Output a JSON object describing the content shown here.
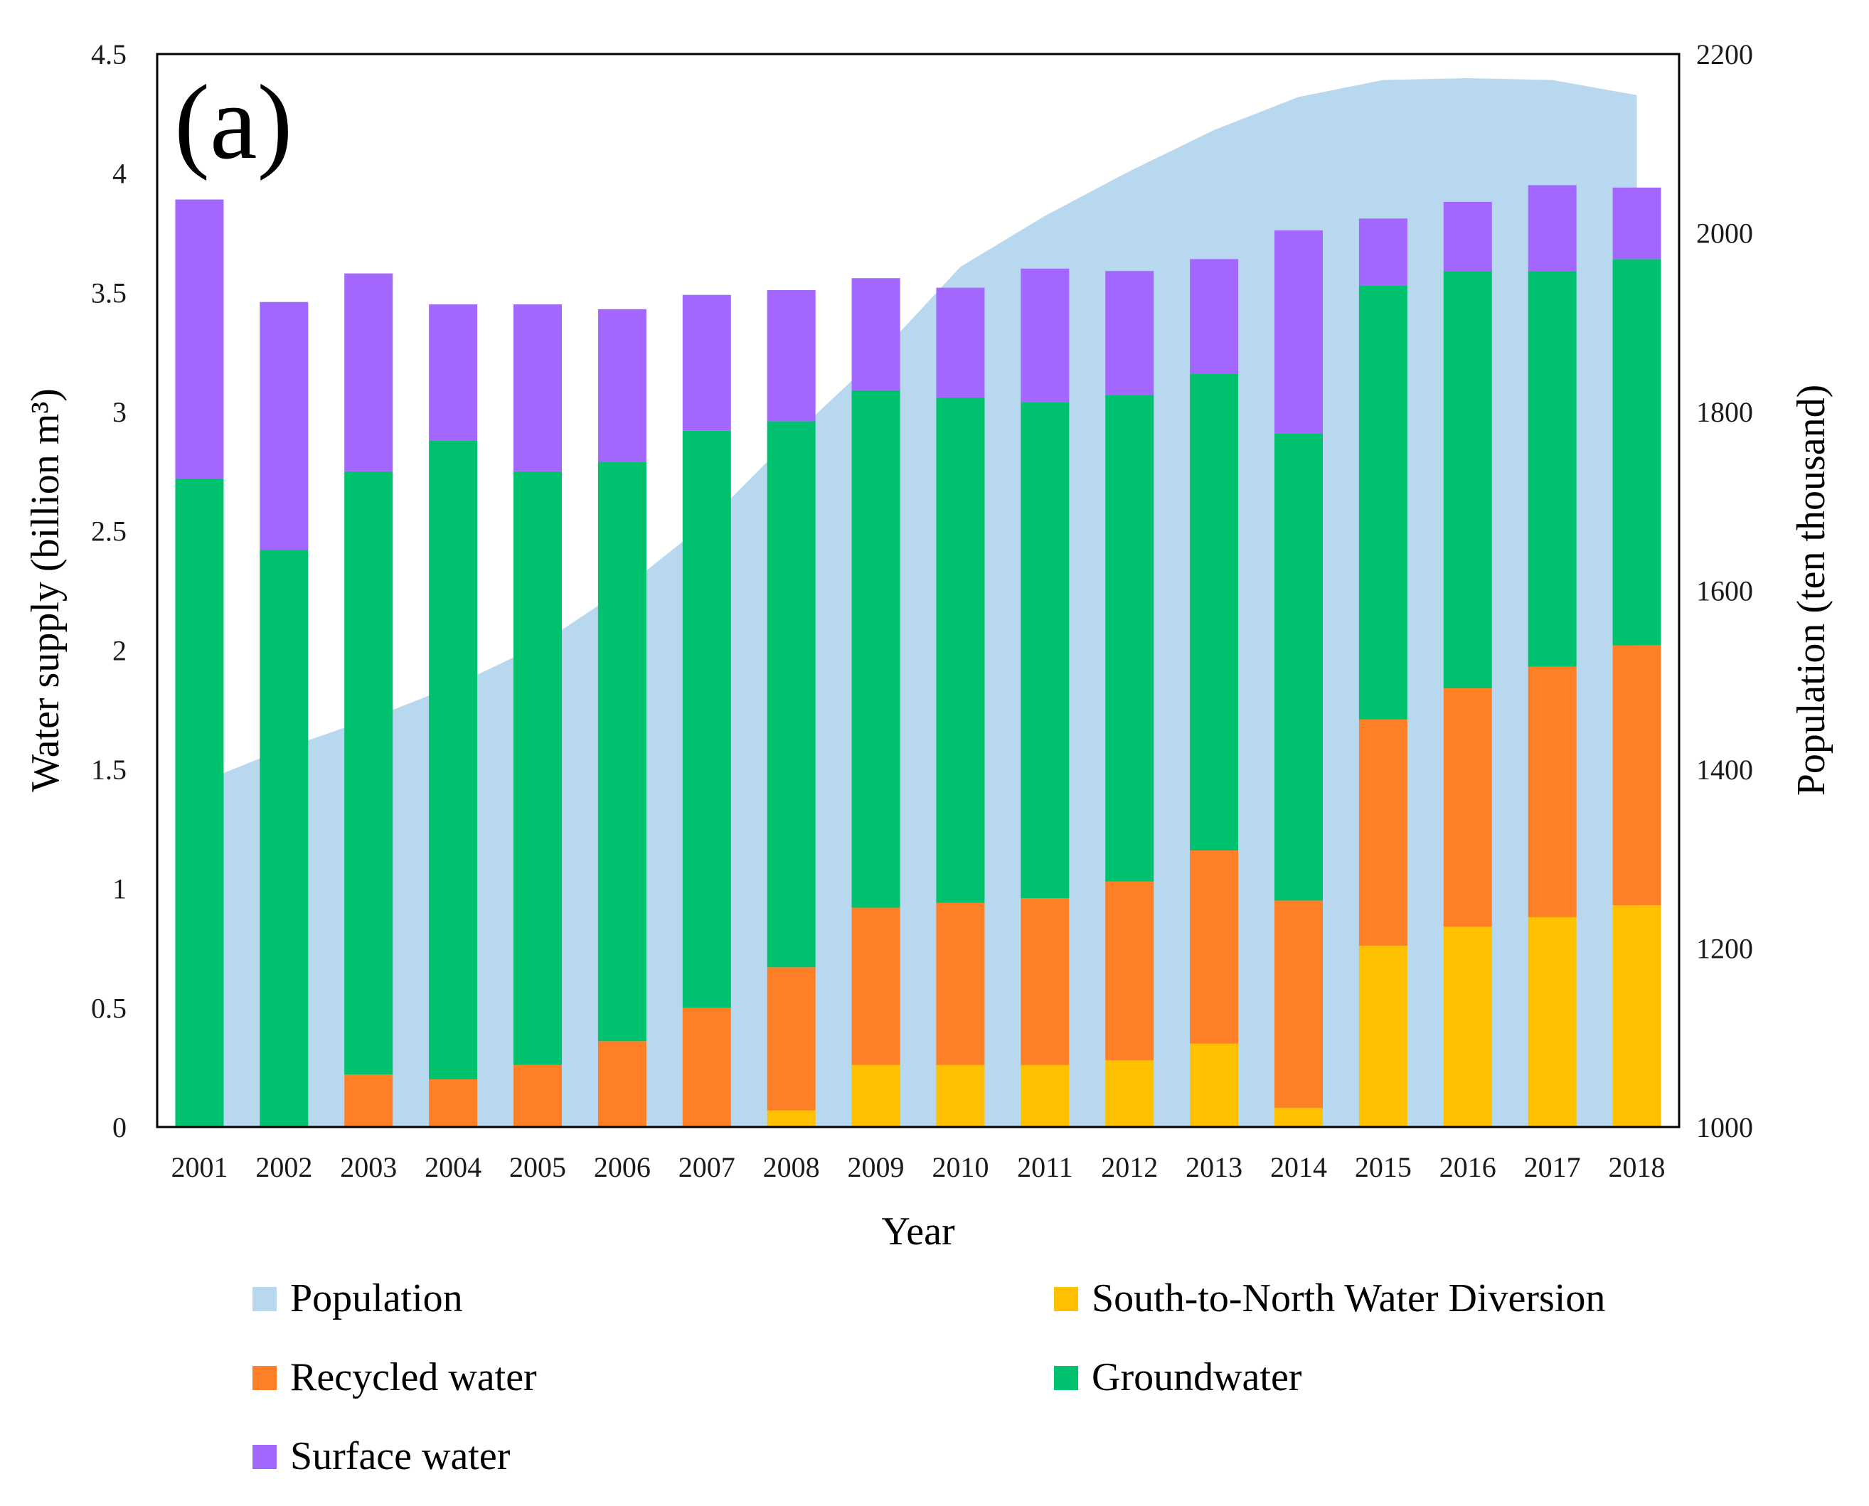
{
  "chart_data": {
    "type": "bar",
    "stacked": true,
    "panel_label": "(a)",
    "xlabel": "Year",
    "ylabel": "Water supply (billion m³)",
    "y2label": "Population (ten thousand)",
    "ylim": [
      0,
      4.5
    ],
    "y2lim": [
      1000,
      2200
    ],
    "yticks": [
      "0",
      "0.5",
      "1",
      "1.5",
      "2",
      "2.5",
      "3",
      "3.5",
      "4",
      "4.5"
    ],
    "y2ticks": [
      "1000",
      "1200",
      "1400",
      "1600",
      "1800",
      "2000",
      "2200"
    ],
    "categories": [
      "2001",
      "2002",
      "2003",
      "2004",
      "2005",
      "2006",
      "2007",
      "2008",
      "2009",
      "2010",
      "2011",
      "2012",
      "2013",
      "2014",
      "2015",
      "2016",
      "2017",
      "2018"
    ],
    "series": [
      {
        "name": "South-to-North Water Diversion",
        "color": "#ffc000",
        "values": [
          0,
          0,
          0,
          0,
          0,
          0,
          0,
          0.07,
          0.26,
          0.26,
          0.26,
          0.28,
          0.35,
          0.08,
          0.76,
          0.84,
          0.88,
          0.93
        ]
      },
      {
        "name": "Recycled water",
        "color": "#ff7f27",
        "values": [
          0,
          0,
          0.22,
          0.2,
          0.26,
          0.36,
          0.5,
          0.6,
          0.66,
          0.68,
          0.7,
          0.75,
          0.81,
          0.87,
          0.95,
          1.0,
          1.05,
          1.09
        ]
      },
      {
        "name": "Groundwater",
        "color": "#00c26e",
        "values": [
          2.72,
          2.42,
          2.53,
          2.68,
          2.49,
          2.43,
          2.42,
          2.29,
          2.17,
          2.12,
          2.08,
          2.04,
          2.0,
          1.96,
          1.82,
          1.75,
          1.66,
          1.62
        ]
      },
      {
        "name": "Surface water",
        "color": "#a366ff",
        "values": [
          1.17,
          1.04,
          0.83,
          0.57,
          0.7,
          0.64,
          0.57,
          0.55,
          0.47,
          0.46,
          0.56,
          0.52,
          0.48,
          0.85,
          0.28,
          0.29,
          0.36,
          0.3
        ]
      }
    ],
    "area_series": {
      "name": "Population",
      "color": "#b7d8ee",
      "axis": "right",
      "values": [
        1385,
        1423,
        1456,
        1493,
        1538,
        1601,
        1676,
        1771,
        1860,
        1962,
        2019,
        2069,
        2115,
        2152,
        2171,
        2173,
        2171,
        2154
      ]
    },
    "legend": [
      {
        "label": "Population",
        "color": "#b7d8ee"
      },
      {
        "label": "South-to-North Water Diversion",
        "color": "#ffc000"
      },
      {
        "label": "Recycled water",
        "color": "#ff7f27"
      },
      {
        "label": "Groundwater",
        "color": "#00c26e"
      },
      {
        "label": "Surface water",
        "color": "#a366ff"
      }
    ],
    "legend_position": "bottom"
  }
}
